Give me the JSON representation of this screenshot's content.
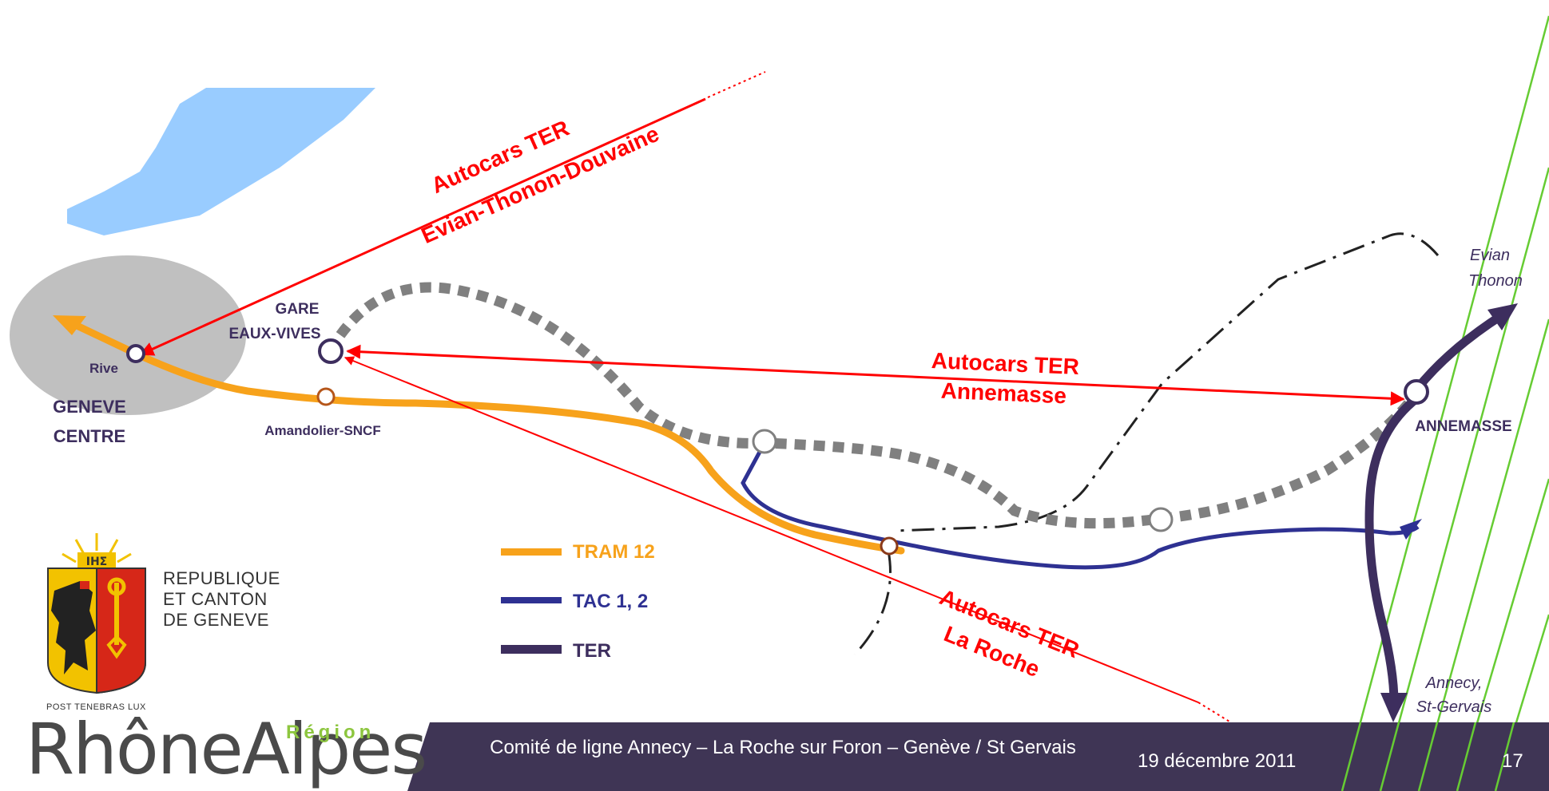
{
  "map": {
    "stations": {
      "gare_eaux_vives_line1": "GARE",
      "gare_eaux_vives_line2": "EAUX-VIVES",
      "rive": "Rive",
      "geneve_centre_line1": "GENEVE",
      "geneve_centre_line2": "CENTRE",
      "amandolier": "Amandolier-SNCF",
      "annemasse": "ANNEMASSE"
    },
    "destinations": {
      "evian_line1": "Evian",
      "evian_line2": "Thonon",
      "annecy_line1": "Annecy,",
      "annecy_line2": "St-Gervais"
    },
    "bus_routes": {
      "evian_line1": "Autocars TER",
      "evian_line2": "Evian-Thonon-Douvaine",
      "annemasse_line1": "Autocars TER",
      "annemasse_line2": "Annemasse",
      "laroche_line1": "Autocars TER",
      "laroche_line2": "La Roche"
    },
    "colors": {
      "tram": "#f7a21b",
      "tac": "#2e3192",
      "ter": "#3d2e5e",
      "bus": "#ff0000",
      "lake": "#99ccff",
      "planned": "#808080",
      "centre_zone": "#c0c0c0",
      "boundary": "#66cc33"
    }
  },
  "legend": {
    "items": [
      {
        "label": "TRAM 12",
        "color": "#f7a21b"
      },
      {
        "label": "TAC 1, 2",
        "color": "#2e3192"
      },
      {
        "label": "TER",
        "color": "#3d2e5e"
      }
    ]
  },
  "logos": {
    "geneve_line1": "REPUBLIQUE",
    "geneve_line2": "ET CANTON",
    "geneve_line3": "DE GENEVE",
    "geneve_motto": "POST TENEBRAS LUX",
    "geneve_sun_text": "IHΣ",
    "rhone_alpes": "RhôneAlpes",
    "rhone_alpes_region": "Région"
  },
  "footer": {
    "title": "Comité de ligne Annecy – La Roche sur Foron – Genève / St Gervais",
    "date": "19 décembre 2011",
    "page": "17",
    "bar_color": "#3f3555"
  }
}
